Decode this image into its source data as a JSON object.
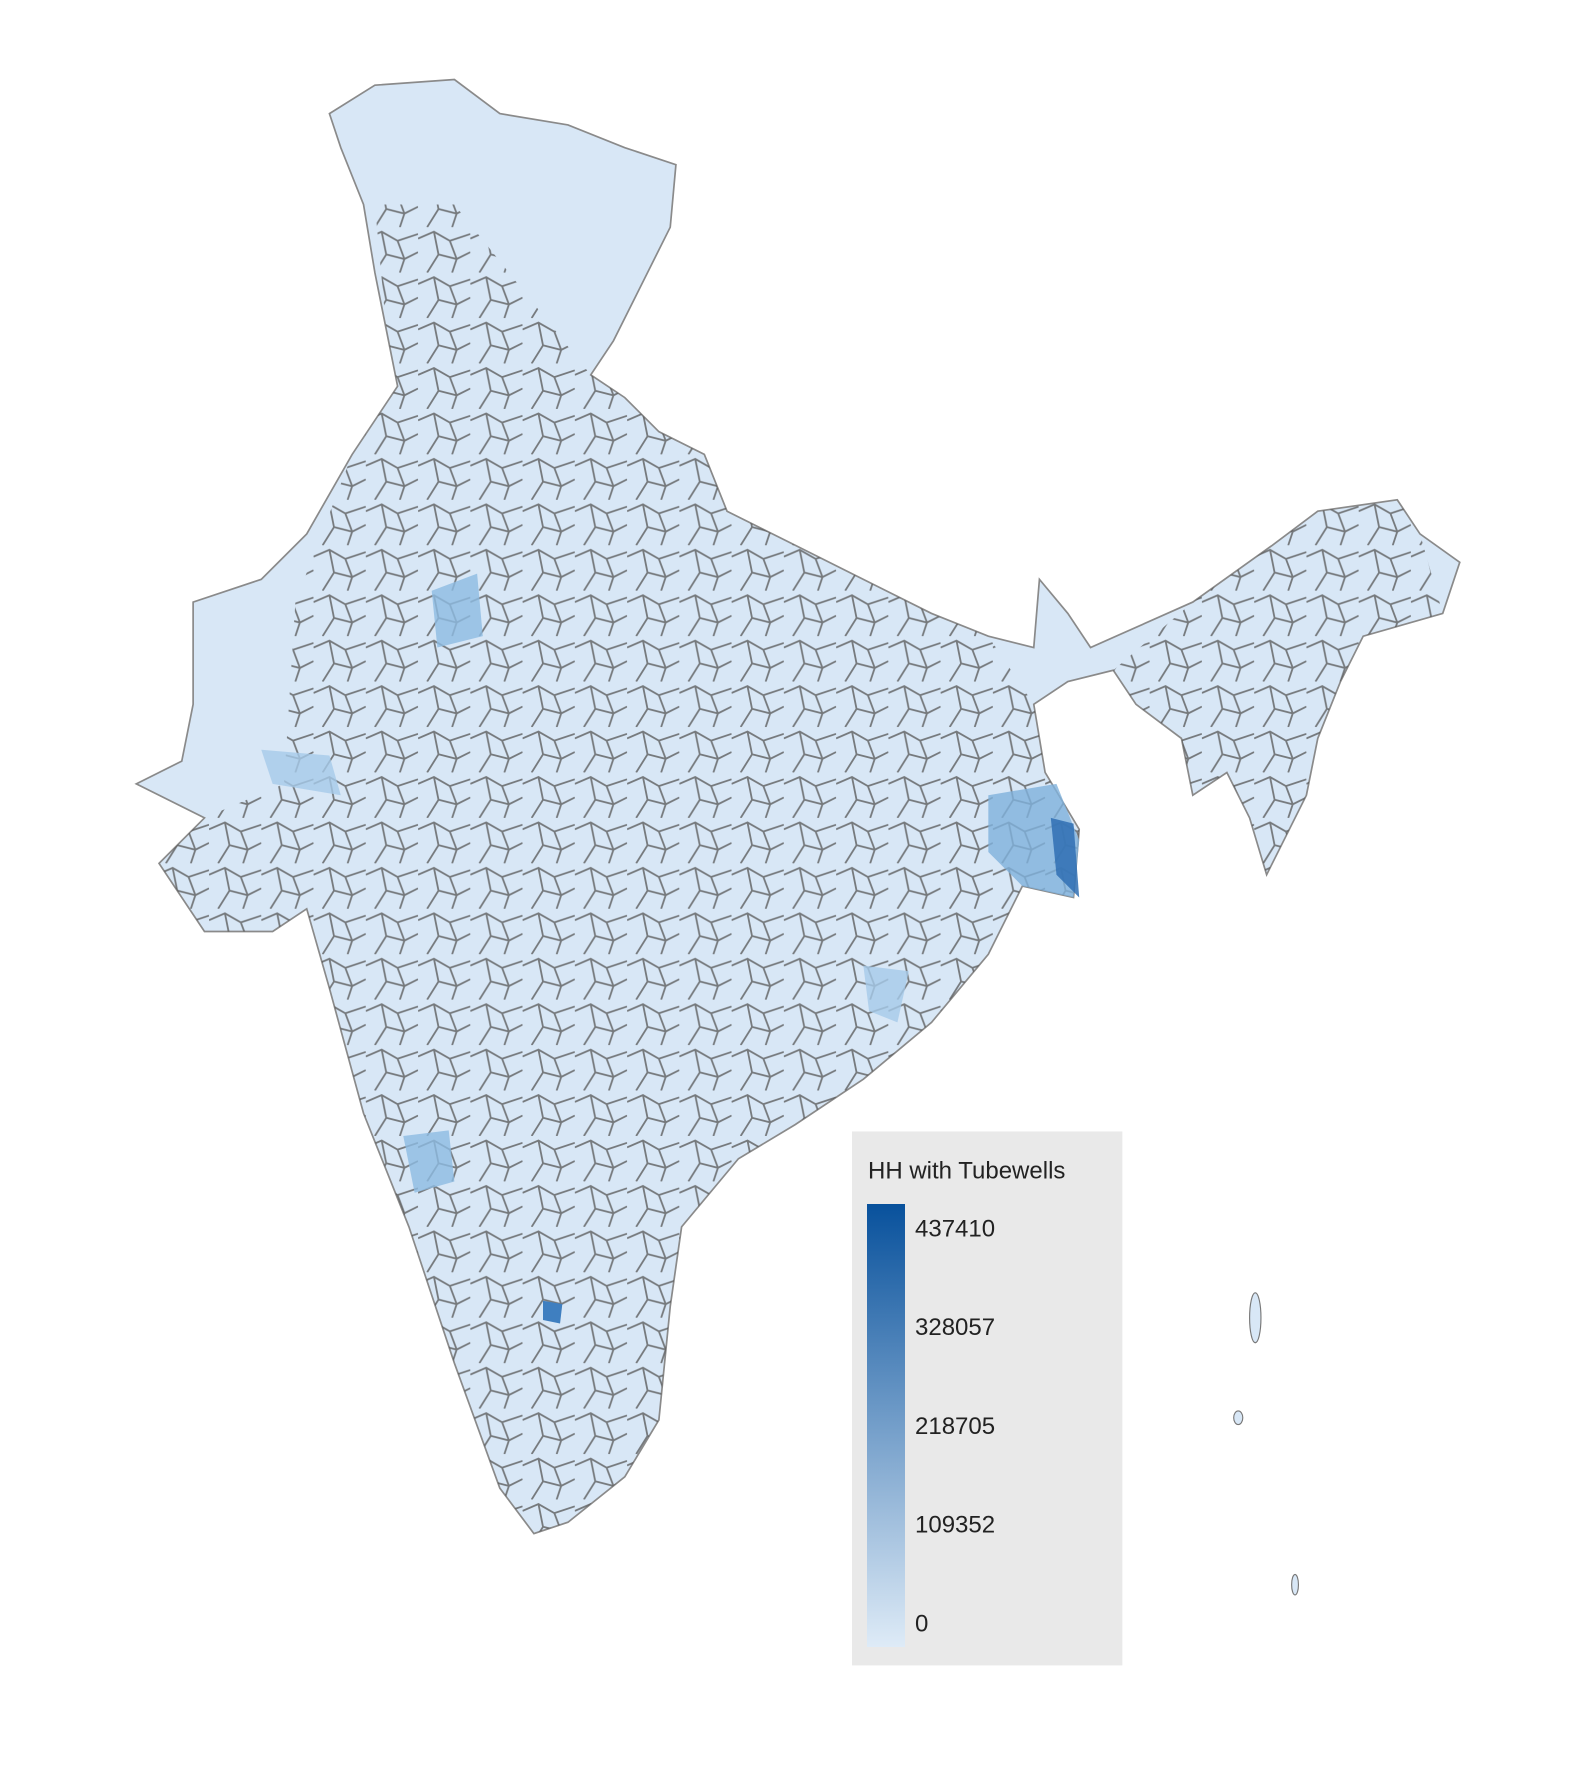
{
  "legend": {
    "title": "HH with Tubewells",
    "ticks": [
      437410,
      328057,
      218705,
      109352,
      0
    ],
    "range": [
      0,
      437410
    ],
    "colors": [
      "#deebf7",
      "#08519c"
    ]
  }
}
